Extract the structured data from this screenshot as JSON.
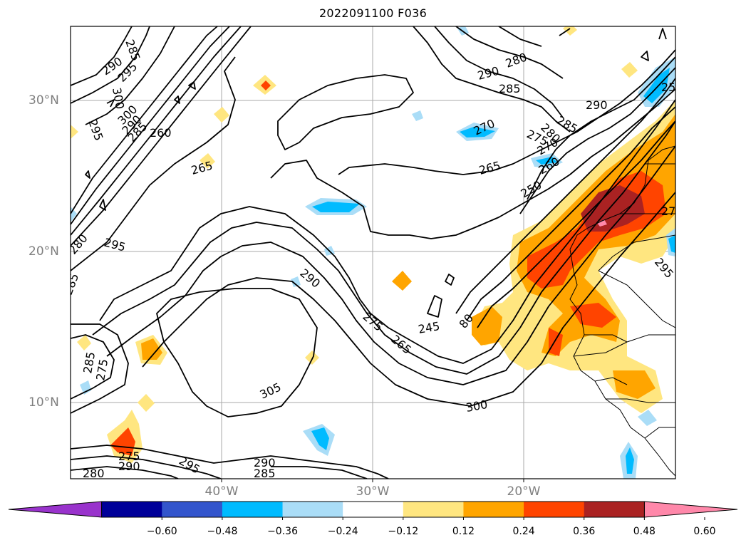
{
  "title": "2022091100 F036",
  "axes": {
    "lat_labels": [
      "30°N",
      "20°N",
      "10°N"
    ],
    "lon_labels": [
      "40°W",
      "30°W",
      "20°W"
    ]
  },
  "contour_labels": [
    "285",
    "290",
    "295",
    "300",
    "295",
    "300",
    "290",
    "285",
    "260",
    "265",
    "280",
    "290",
    "285",
    "270",
    "275",
    "280",
    "285",
    "290",
    "25",
    "265",
    "260",
    "270",
    "250",
    "27",
    "280",
    "295",
    "290",
    "275",
    "265",
    "245",
    "80",
    "295",
    "285",
    "305",
    "300",
    "290",
    "285",
    "280",
    "275",
    "290",
    "295",
    "285",
    "275"
  ],
  "colorbar": {
    "ticks": [
      "−0.60",
      "−0.48",
      "−0.36",
      "−0.24",
      "−0.12",
      "0.12",
      "0.24",
      "0.36",
      "0.48",
      "0.60"
    ],
    "colors": [
      "#9933cc",
      "#000099",
      "#3355cc",
      "#00bbff",
      "#aaddf7",
      "#ffffff",
      "#ffe680",
      "#ffa500",
      "#ff4400",
      "#aa2222",
      "#ff88aa"
    ],
    "extend": "both"
  }
}
